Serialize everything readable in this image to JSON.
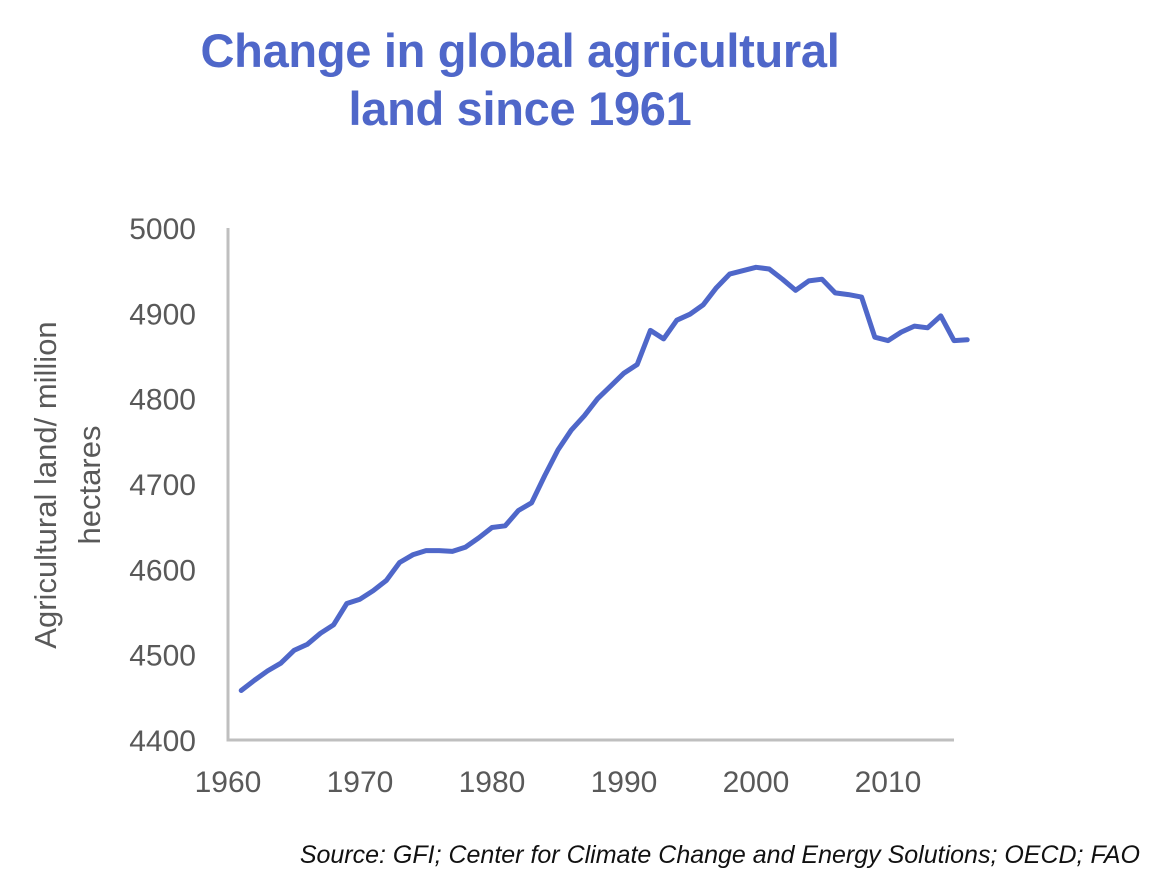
{
  "chart_data": {
    "type": "line",
    "title": [
      "Change in global agricultural",
      "land since 1961"
    ],
    "xlabel": "",
    "ylabel": [
      "Agricultural land/ million",
      "hectares"
    ],
    "xlim": [
      1960,
      2015
    ],
    "ylim": [
      4400,
      5000
    ],
    "xticks": [
      1960,
      1970,
      1980,
      1990,
      2000,
      2010
    ],
    "yticks": [
      4400,
      4500,
      4600,
      4700,
      4800,
      4900,
      5000
    ],
    "grid": false,
    "legend": "none",
    "series": [
      {
        "name": "Agricultural land",
        "color": "#4f67c9",
        "x": [
          1961,
          1962,
          1963,
          1964,
          1965,
          1966,
          1967,
          1968,
          1969,
          1970,
          1971,
          1972,
          1973,
          1974,
          1975,
          1976,
          1977,
          1978,
          1979,
          1980,
          1981,
          1982,
          1983,
          1984,
          1985,
          1986,
          1987,
          1988,
          1989,
          1990,
          1991,
          1992,
          1993,
          1994,
          1995,
          1996,
          1997,
          1998,
          1999,
          2000,
          2001,
          2002,
          2003,
          2004,
          2005,
          2006,
          2007,
          2008,
          2009,
          2010,
          2011,
          2012,
          2013,
          2014,
          2015,
          2016
        ],
        "values": [
          4458,
          4470,
          4481,
          4490,
          4505,
          4512,
          4525,
          4535,
          4560,
          4565,
          4575,
          4587,
          4608,
          4617,
          4622,
          4622,
          4621,
          4626,
          4637,
          4649,
          4651,
          4669,
          4678,
          4710,
          4740,
          4763,
          4780,
          4800,
          4815,
          4830,
          4840,
          4880,
          4870,
          4892,
          4899,
          4910,
          4930,
          4946,
          4950,
          4954,
          4952,
          4940,
          4927,
          4938,
          4940,
          4924,
          4922,
          4919,
          4872,
          4868,
          4878,
          4885,
          4883,
          4897,
          4868,
          4869
        ]
      }
    ],
    "source": "Source: GFI; Center for Climate Change and Energy Solutions; OECD; FAO"
  }
}
